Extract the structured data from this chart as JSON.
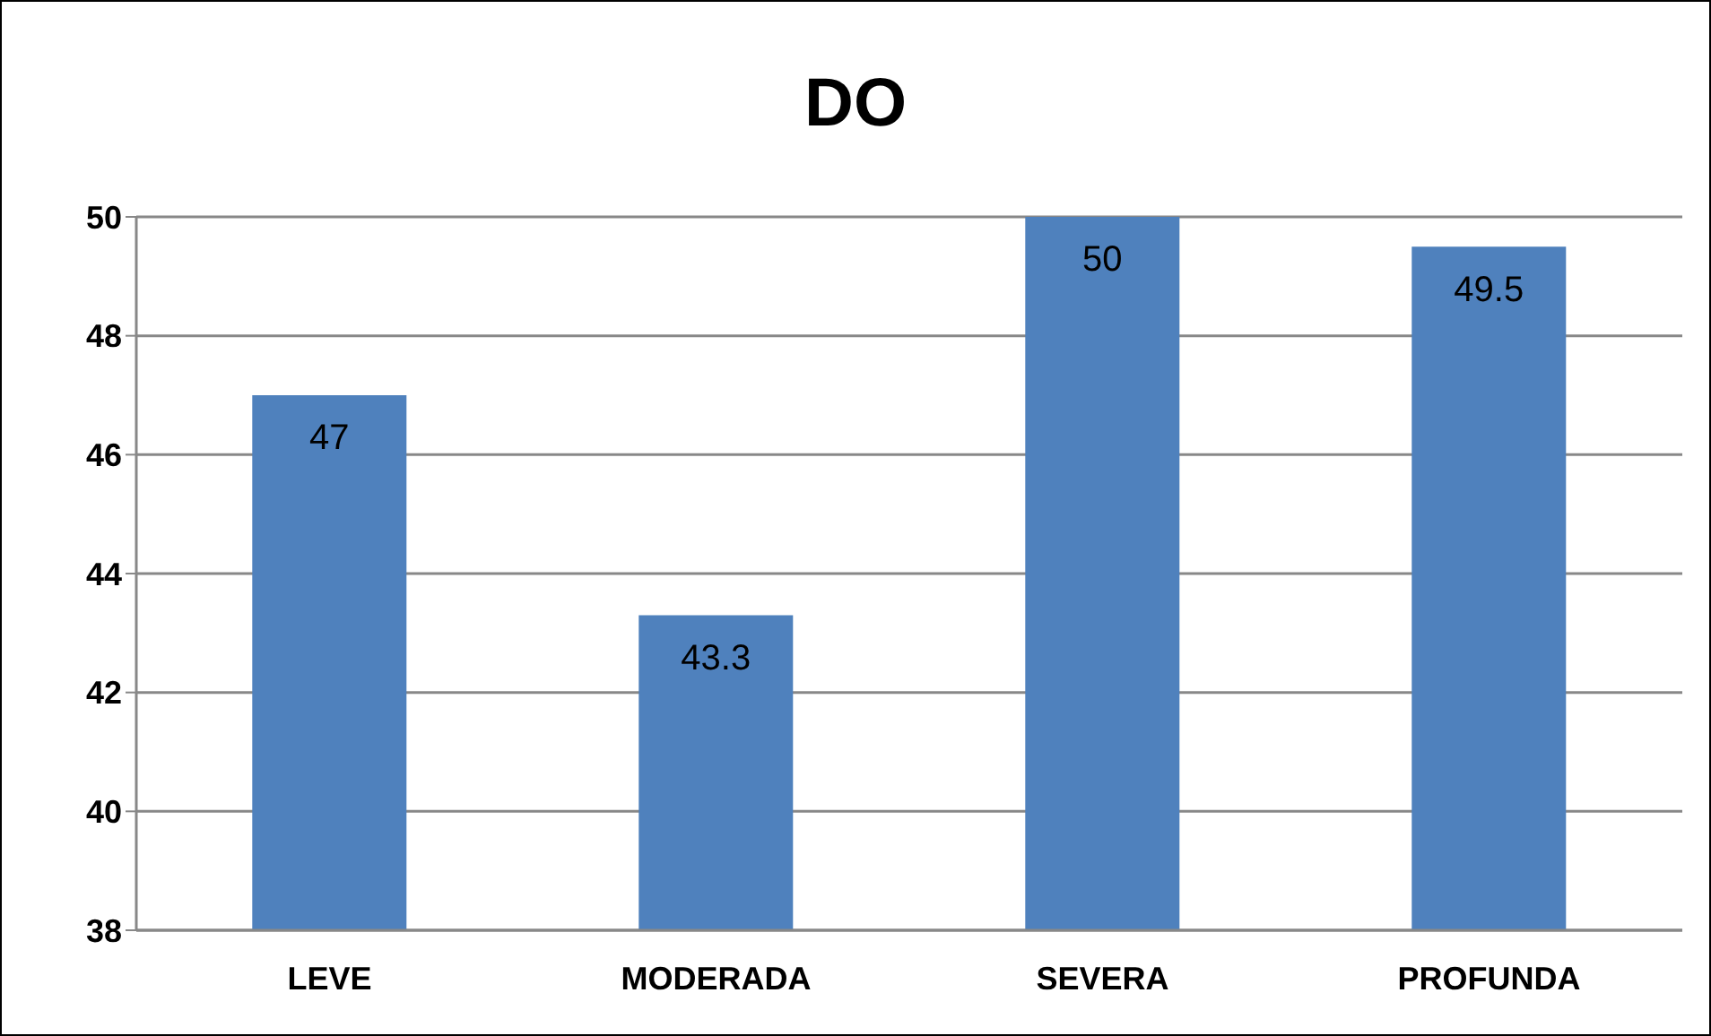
{
  "chart_data": {
    "type": "bar",
    "title": "DO",
    "categories": [
      "LEVE",
      "MODERADA",
      "SEVERA",
      "PROFUNDA"
    ],
    "values": [
      47,
      43.3,
      50,
      49.5
    ],
    "color": "#4f81bd",
    "ylim": [
      38,
      50
    ],
    "yticks": [
      38,
      40,
      42,
      44,
      46,
      48,
      50
    ],
    "grid": "y",
    "data_labels": true
  }
}
